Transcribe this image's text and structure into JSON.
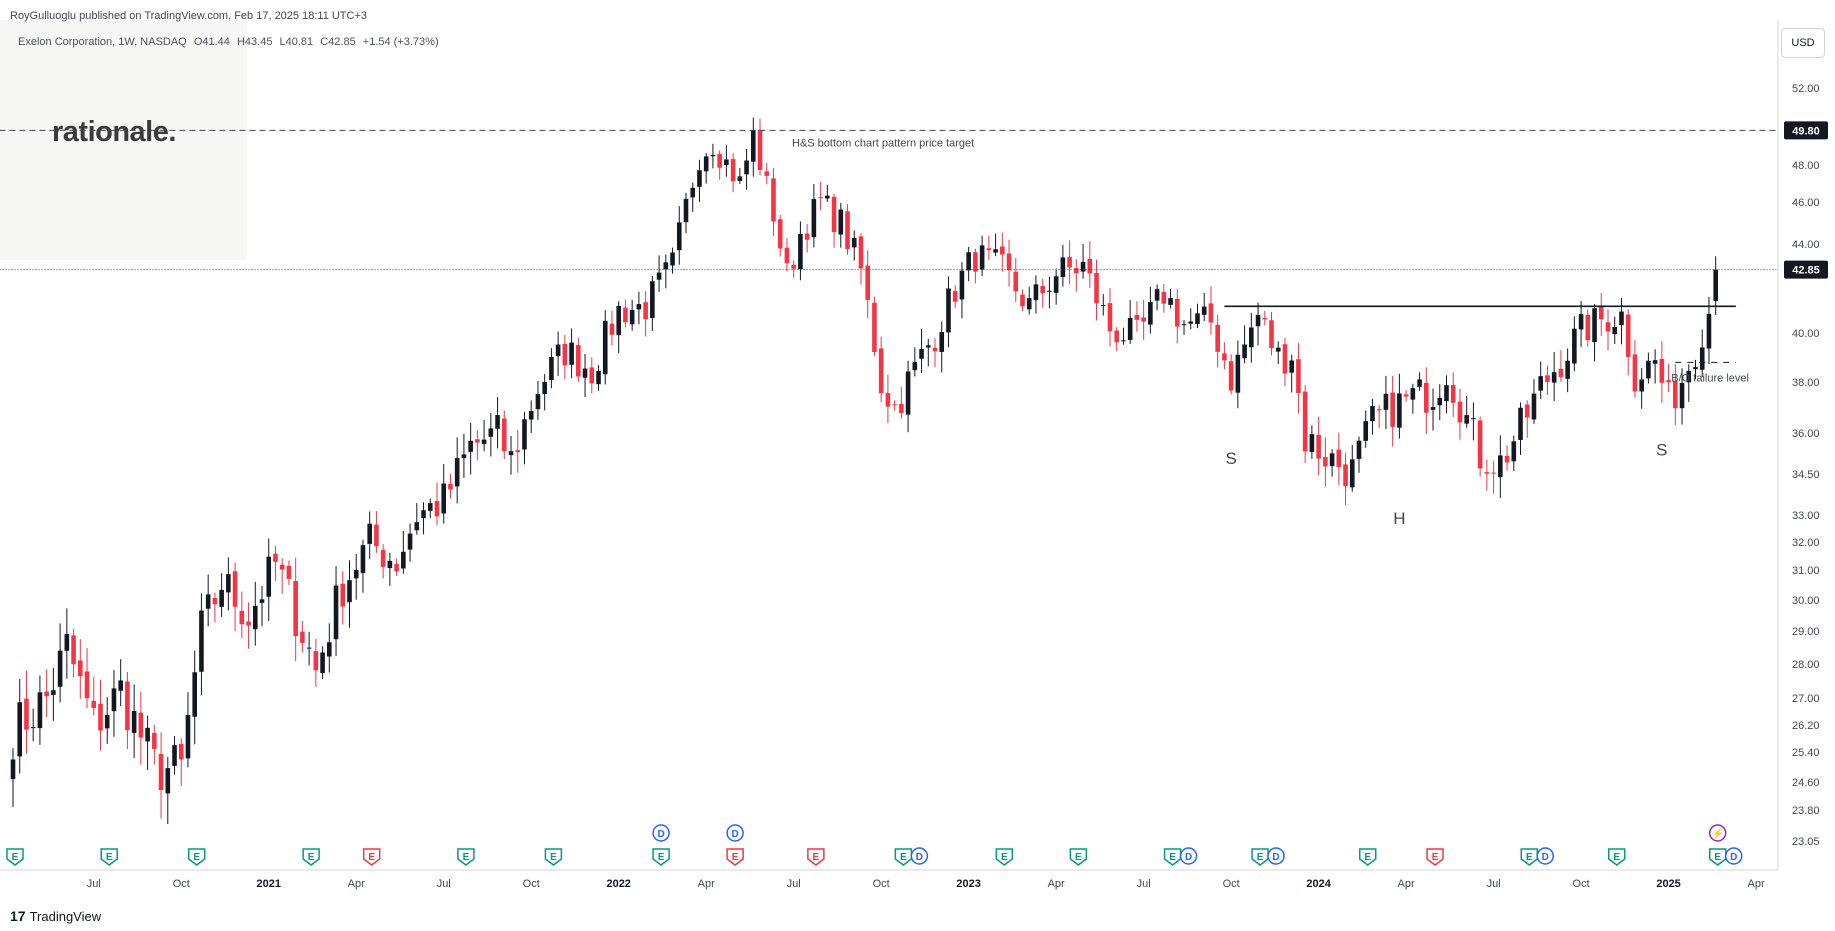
{
  "header": {
    "publisher": "RoyGulluoglu published on TradingView.com, Feb 17, 2025 18:11 UTC+3",
    "symbol_line": [
      "Exelon Corporation, 1W, NASDAQ",
      "O41.44",
      "H43.45",
      "L40.81",
      "C42.85",
      "+1.54 (+3.73%)"
    ],
    "watermark": "rationale."
  },
  "currency_button": "USD",
  "footer": {
    "logo": "17",
    "brand": "TradingView"
  },
  "chart_data": {
    "type": "candlestick",
    "title": "",
    "x_ticks": [
      {
        "label": "Jul",
        "week": 12
      },
      {
        "label": "Oct",
        "week": 25
      },
      {
        "label": "2021",
        "week": 38,
        "bold": true
      },
      {
        "label": "Apr",
        "week": 51
      },
      {
        "label": "Jul",
        "week": 64
      },
      {
        "label": "Oct",
        "week": 77
      },
      {
        "label": "2022",
        "week": 90,
        "bold": true
      },
      {
        "label": "Apr",
        "week": 103
      },
      {
        "label": "Jul",
        "week": 116
      },
      {
        "label": "Oct",
        "week": 129
      },
      {
        "label": "2023",
        "week": 142,
        "bold": true
      },
      {
        "label": "Apr",
        "week": 155
      },
      {
        "label": "Jul",
        "week": 168
      },
      {
        "label": "Oct",
        "week": 181
      },
      {
        "label": "2024",
        "week": 194,
        "bold": true
      },
      {
        "label": "Apr",
        "week": 207
      },
      {
        "label": "Jul",
        "week": 220
      },
      {
        "label": "Oct",
        "week": 233
      },
      {
        "label": "2025",
        "week": 246,
        "bold": true
      },
      {
        "label": "Apr",
        "week": 259
      }
    ],
    "y_ticks": [
      "52.00",
      "48.00",
      "46.00",
      "44.00",
      "40.00",
      "38.00",
      "36.00",
      "34.50",
      "33.00",
      "32.00",
      "31.00",
      "30.00",
      "29.00",
      "28.00",
      "27.00",
      "26.20",
      "25.40",
      "24.60",
      "23.80",
      "23.05"
    ],
    "y_range": [
      22.8,
      54.0
    ],
    "price_labels": [
      {
        "text": "49.80",
        "value": 49.8,
        "style": "dark"
      },
      {
        "text": "42.85",
        "value": 42.85,
        "style": "dark"
      }
    ],
    "waypoints": [
      [
        0,
        26.0
      ],
      [
        5,
        27.0
      ],
      [
        8,
        28.5
      ],
      [
        12,
        26.2
      ],
      [
        16,
        27.2
      ],
      [
        21,
        25.0
      ],
      [
        25,
        24.9
      ],
      [
        28,
        29.0
      ],
      [
        31,
        30.6
      ],
      [
        35,
        29.5
      ],
      [
        39,
        31.2
      ],
      [
        43,
        29.0
      ],
      [
        45,
        27.8
      ],
      [
        49,
        30.5
      ],
      [
        53,
        32.0
      ],
      [
        57,
        31.3
      ],
      [
        60,
        33.0
      ],
      [
        64,
        33.5
      ],
      [
        68,
        35.5
      ],
      [
        72,
        36.0
      ],
      [
        74,
        35.0
      ],
      [
        78,
        37.8
      ],
      [
        82,
        39.3
      ],
      [
        86,
        38.5
      ],
      [
        90,
        41.0
      ],
      [
        94,
        41.2
      ],
      [
        98,
        43.0
      ],
      [
        102,
        48.5
      ],
      [
        104,
        49.2
      ],
      [
        108,
        47.0
      ],
      [
        110,
        49.5
      ],
      [
        112,
        46.8
      ],
      [
        113,
        45.5
      ],
      [
        115,
        42.5
      ],
      [
        117,
        44.5
      ],
      [
        120,
        46.0
      ],
      [
        123,
        45.0
      ],
      [
        126,
        42.8
      ],
      [
        129,
        38.0
      ],
      [
        131,
        37.0
      ],
      [
        134,
        38.5
      ],
      [
        137,
        40.0
      ],
      [
        140,
        42.0
      ],
      [
        143,
        43.5
      ],
      [
        147,
        42.8
      ],
      [
        151,
        41.2
      ],
      [
        155,
        42.7
      ],
      [
        159,
        43.0
      ],
      [
        163,
        40.2
      ],
      [
        167,
        39.8
      ],
      [
        171,
        41.8
      ],
      [
        174,
        40.4
      ],
      [
        178,
        40.5
      ],
      [
        181,
        38.2
      ],
      [
        183,
        39.5
      ],
      [
        185,
        40.8
      ],
      [
        188,
        39.0
      ],
      [
        190,
        39.2
      ],
      [
        192,
        35.8
      ],
      [
        196,
        35.0
      ],
      [
        199,
        34.6
      ],
      [
        202,
        36.4
      ],
      [
        205,
        37.0
      ],
      [
        208,
        37.4
      ],
      [
        211,
        37.6
      ],
      [
        213,
        38.5
      ],
      [
        215,
        37.2
      ],
      [
        218,
        35.2
      ],
      [
        221,
        34.9
      ],
      [
        224,
        36.2
      ],
      [
        227,
        37.8
      ],
      [
        230,
        38.9
      ],
      [
        233,
        40.1
      ],
      [
        236,
        40.6
      ],
      [
        239,
        40.8
      ],
      [
        241,
        38.3
      ],
      [
        244,
        38.8
      ],
      [
        246,
        37.2
      ],
      [
        248,
        38.1
      ],
      [
        250,
        39.4
      ],
      [
        252,
        41.0
      ],
      [
        253,
        42.85
      ]
    ],
    "lines": [
      {
        "type": "dashed",
        "value": 49.8,
        "from_week": -2,
        "to_week": 262,
        "label": "H&S bottom chart pattern price target"
      },
      {
        "type": "dotted",
        "value": 42.85,
        "from_week": -2,
        "to_week": 262
      },
      {
        "type": "solid",
        "value": 41.2,
        "from_week": 180,
        "to_week": 256
      },
      {
        "type": "dashed-short",
        "value": 38.8,
        "from_week": 247,
        "to_week": 256,
        "label": "B/O failure level"
      }
    ],
    "annotations": [
      {
        "text": "S",
        "week": 181,
        "value": 35.6
      },
      {
        "text": "H",
        "week": 206,
        "value": 33.4
      },
      {
        "text": "S",
        "week": 245,
        "value": 35.9
      }
    ],
    "events": [
      {
        "week": 0,
        "kind": "E"
      },
      {
        "week": 14,
        "kind": "E"
      },
      {
        "week": 27,
        "kind": "E"
      },
      {
        "week": 44,
        "kind": "E"
      },
      {
        "week": 53,
        "kind": "E",
        "negative": true
      },
      {
        "week": 67,
        "kind": "E"
      },
      {
        "week": 80,
        "kind": "E"
      },
      {
        "week": 96,
        "kind": "E",
        "dividend": true
      },
      {
        "week": 107,
        "kind": "E",
        "negative": true,
        "dividend": true
      },
      {
        "week": 119,
        "kind": "E",
        "negative": true
      },
      {
        "week": 132,
        "kind": "E",
        "with_d": true
      },
      {
        "week": 147,
        "kind": "E"
      },
      {
        "week": 158,
        "kind": "E"
      },
      {
        "week": 172,
        "kind": "E",
        "with_d": true
      },
      {
        "week": 185,
        "kind": "E",
        "with_d": true
      },
      {
        "week": 201,
        "kind": "E"
      },
      {
        "week": 211,
        "kind": "E",
        "negative": true
      },
      {
        "week": 225,
        "kind": "E",
        "with_d": true
      },
      {
        "week": 238,
        "kind": "E"
      },
      {
        "week": 253,
        "kind": "E",
        "with_d": true,
        "lightning": true
      }
    ]
  }
}
